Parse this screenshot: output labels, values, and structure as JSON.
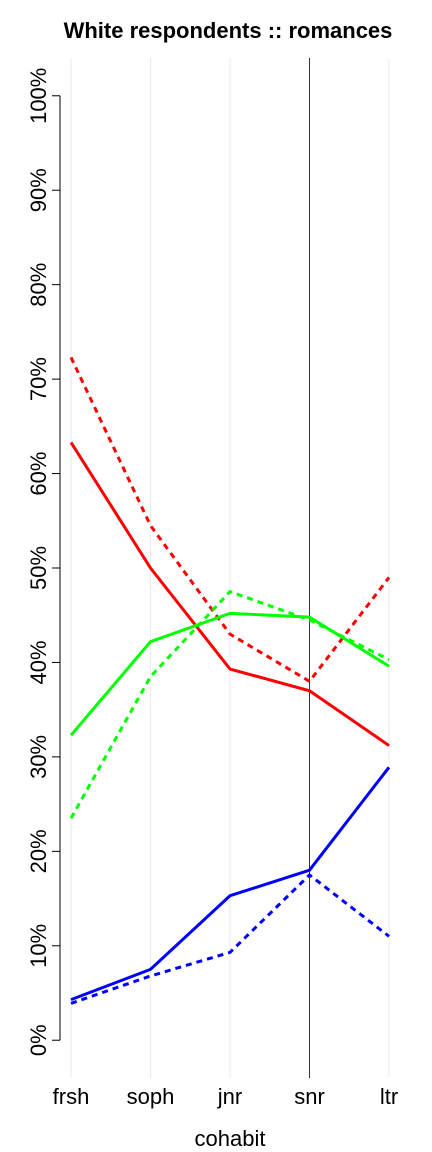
{
  "chart_data": {
    "type": "line",
    "title": "White respondents :: romances",
    "x_label": "cohabit",
    "categories": [
      "frsh",
      "soph",
      "jnr",
      "snr",
      "ltr"
    ],
    "series": [
      {
        "color": "#ff0000",
        "dashed": false,
        "values": [
          63.3,
          50.0,
          39.3,
          37.0,
          31.2
        ]
      },
      {
        "color": "#ff0000",
        "dashed": true,
        "values": [
          72.3,
          54.5,
          43.0,
          38.0,
          49.0
        ]
      },
      {
        "color": "#00ff00",
        "dashed": false,
        "values": [
          32.3,
          42.2,
          45.2,
          44.8,
          39.6
        ]
      },
      {
        "color": "#00ff00",
        "dashed": true,
        "values": [
          23.5,
          38.5,
          47.5,
          44.5,
          40.3
        ]
      },
      {
        "color": "#0000ff",
        "dashed": false,
        "values": [
          4.3,
          7.5,
          15.3,
          18.0,
          28.9
        ]
      },
      {
        "color": "#0000ff",
        "dashed": true,
        "values": [
          3.9,
          6.8,
          9.3,
          17.5,
          11.0
        ]
      }
    ],
    "ylim": [
      -4,
      104
    ],
    "yticks": [
      {
        "value": 0,
        "label": "0%"
      },
      {
        "value": 10,
        "label": "10%"
      },
      {
        "value": 20,
        "label": "20%"
      },
      {
        "value": 30,
        "label": "30%"
      },
      {
        "value": 40,
        "label": "40%"
      },
      {
        "value": 50,
        "label": "50%"
      },
      {
        "value": 60,
        "label": "60%"
      },
      {
        "value": 70,
        "label": "70%"
      },
      {
        "value": 80,
        "label": "80%"
      },
      {
        "value": 90,
        "label": "90%"
      },
      {
        "value": 100,
        "label": "100%"
      }
    ],
    "grid": true
  }
}
